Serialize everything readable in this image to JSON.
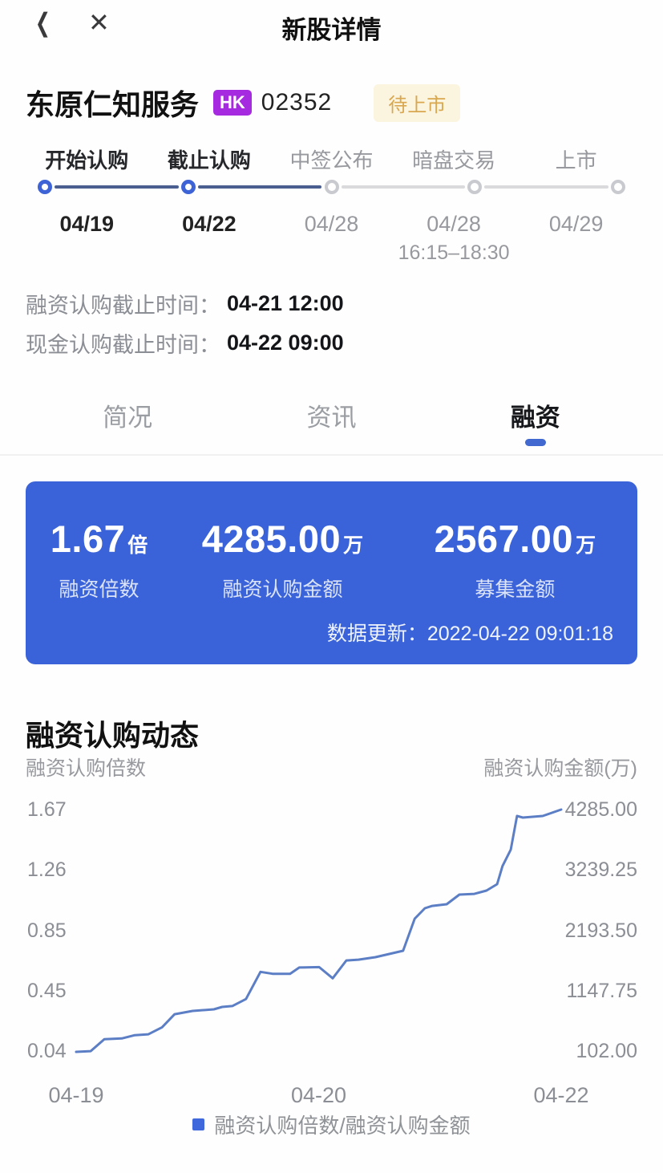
{
  "colors": {
    "accent": "#3D63D6",
    "card-bg": "#3A63DA",
    "line": "#5C7EC5",
    "navy": "#4A5F90",
    "gray-line": "#DADADD",
    "hk": "#A62BE0",
    "status-bg": "#FBF4DF",
    "status-fg": "#D9A74F"
  },
  "header": {
    "title": "新股详情",
    "back_icon": "chevron-left",
    "close_icon": "x"
  },
  "stock": {
    "name": "东原仁知服务",
    "market_badge": "HK",
    "code": "02352",
    "status_badge": "待上市"
  },
  "timeline": {
    "steps": [
      {
        "label": "开始认购",
        "date": "04/19",
        "sub": "",
        "active": true
      },
      {
        "label": "截止认购",
        "date": "04/22",
        "sub": "",
        "active": true
      },
      {
        "label": "中签公布",
        "date": "04/28",
        "sub": "",
        "active": false
      },
      {
        "label": "暗盘交易",
        "date": "04/28",
        "sub": "16:15–18:30",
        "active": false
      },
      {
        "label": "上市",
        "date": "04/29",
        "sub": "",
        "active": false
      }
    ]
  },
  "deadlines": [
    {
      "label": "融资认购截止时间：",
      "value": "04-21 12:00"
    },
    {
      "label": "现金认购截止时间：",
      "value": "04-22 09:00"
    }
  ],
  "tabs": [
    {
      "label": "简况",
      "active": false
    },
    {
      "label": "资讯",
      "active": false
    },
    {
      "label": "融资",
      "active": true
    }
  ],
  "summary_card": {
    "stats": [
      {
        "value": "1.67",
        "unit": "倍",
        "label": "融资倍数"
      },
      {
        "value": "4285.00",
        "unit": "万",
        "label": "融资认购金额"
      },
      {
        "value": "2567.00",
        "unit": "万",
        "label": "募集金额"
      }
    ],
    "update_label": "数据更新：",
    "update_time": "2022-04-22 09:01:18"
  },
  "section_title": "融资认购动态",
  "chart_data": {
    "type": "line",
    "title": "融资认购动态",
    "grid": false,
    "legend": "融资认购倍数/融资认购金额",
    "legend_position": "bottom-center",
    "line_color": "#5C7EC5",
    "left_axis": {
      "title": "融资认购倍数",
      "ticks": [
        "1.67",
        "1.26",
        "0.85",
        "0.45",
        "0.04"
      ],
      "range": [
        0.04,
        1.67
      ]
    },
    "right_axis": {
      "title": "融资认购金额(万)",
      "ticks": [
        "4285.00",
        "3239.25",
        "2193.50",
        "1147.75",
        "102.00"
      ],
      "range": [
        102.0,
        4285.0
      ]
    },
    "x_axis": {
      "labels": [
        {
          "text": "04-19",
          "t": 0.0
        },
        {
          "text": "04-20",
          "t": 0.5
        },
        {
          "text": "04-22",
          "t": 1.0
        }
      ]
    },
    "series": [
      {
        "name": "融资认购倍数",
        "points": [
          {
            "t": 0.0,
            "m": 0.04
          },
          {
            "t": 0.03,
            "m": 0.045
          },
          {
            "t": 0.058,
            "m": 0.125
          },
          {
            "t": 0.094,
            "m": 0.13
          },
          {
            "t": 0.121,
            "m": 0.152
          },
          {
            "t": 0.149,
            "m": 0.158
          },
          {
            "t": 0.177,
            "m": 0.205
          },
          {
            "t": 0.203,
            "m": 0.293
          },
          {
            "t": 0.24,
            "m": 0.315
          },
          {
            "t": 0.284,
            "m": 0.326
          },
          {
            "t": 0.301,
            "m": 0.342
          },
          {
            "t": 0.322,
            "m": 0.348
          },
          {
            "t": 0.35,
            "m": 0.395
          },
          {
            "t": 0.38,
            "m": 0.578
          },
          {
            "t": 0.405,
            "m": 0.565
          },
          {
            "t": 0.441,
            "m": 0.565
          },
          {
            "t": 0.46,
            "m": 0.607
          },
          {
            "t": 0.501,
            "m": 0.61
          },
          {
            "t": 0.529,
            "m": 0.535
          },
          {
            "t": 0.557,
            "m": 0.655
          },
          {
            "t": 0.582,
            "m": 0.66
          },
          {
            "t": 0.617,
            "m": 0.677
          },
          {
            "t": 0.674,
            "m": 0.72
          },
          {
            "t": 0.698,
            "m": 0.936
          },
          {
            "t": 0.719,
            "m": 1.006
          },
          {
            "t": 0.734,
            "m": 1.022
          },
          {
            "t": 0.764,
            "m": 1.033
          },
          {
            "t": 0.79,
            "m": 1.098
          },
          {
            "t": 0.821,
            "m": 1.103
          },
          {
            "t": 0.846,
            "m": 1.125
          },
          {
            "t": 0.868,
            "m": 1.168
          },
          {
            "t": 0.879,
            "m": 1.29
          },
          {
            "t": 0.896,
            "m": 1.4
          },
          {
            "t": 0.909,
            "m": 1.627
          },
          {
            "t": 0.921,
            "m": 1.616
          },
          {
            "t": 0.962,
            "m": 1.627
          },
          {
            "t": 1.0,
            "m": 1.67
          }
        ]
      }
    ]
  }
}
